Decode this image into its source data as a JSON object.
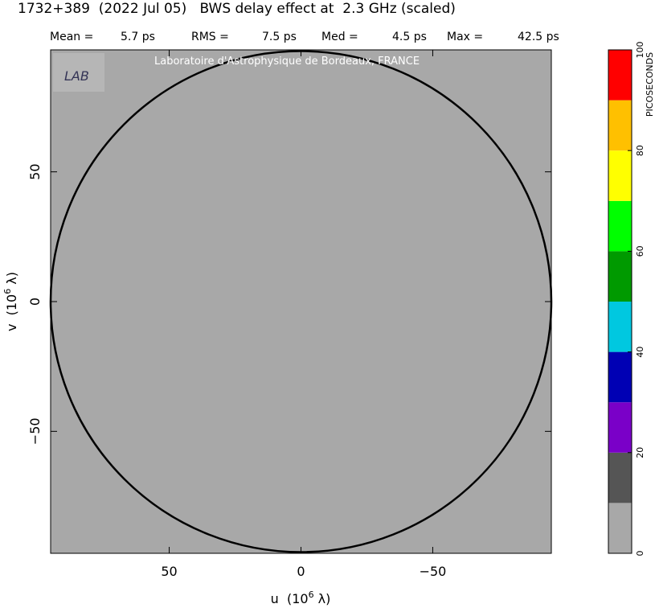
{
  "chart_data": {
    "type": "uvmap",
    "title": "1732+389  (2022 Jul 05)   BWS delay effect at  2.3 GHz (scaled)",
    "stats": [
      {
        "label": "Mean =",
        "value": "5.7 ps"
      },
      {
        "label": "RMS =",
        "value": "7.5 ps"
      },
      {
        "label": "Med =",
        "value": "4.5 ps"
      },
      {
        "label": "Max =",
        "value": "42.5 ps"
      }
    ],
    "watermark": "Laboratoire d'Astrophysique de Bordeaux, FRANCE",
    "xlabel": {
      "main": "u  (10",
      "sup": "6",
      "tail": " λ)"
    },
    "ylabel": {
      "main": "v  (10",
      "sup": "6",
      "tail": " λ)"
    },
    "xlim": [
      95,
      -95
    ],
    "ylim": [
      -97,
      97
    ],
    "xticks": [
      50,
      0,
      {
        "value": -50,
        "label": "−50"
      }
    ],
    "yticks": [
      {
        "value": -50,
        "label": "−50"
      },
      0,
      50
    ],
    "background": "#a8a8a8",
    "colorbar": {
      "label": "PICOSECONDS",
      "bounds": [
        0,
        10,
        20,
        30,
        40,
        50,
        60,
        70,
        80,
        90,
        100
      ],
      "colors": [
        "#a8a8a8",
        "#555555",
        "#7a00c8",
        "#0000b4",
        "#00c8e0",
        "#009a00",
        "#00ff00",
        "#ffff00",
        "#ffc000",
        "#ff0000"
      ],
      "ticks": [
        0,
        20,
        40,
        60,
        80,
        100
      ]
    }
  }
}
